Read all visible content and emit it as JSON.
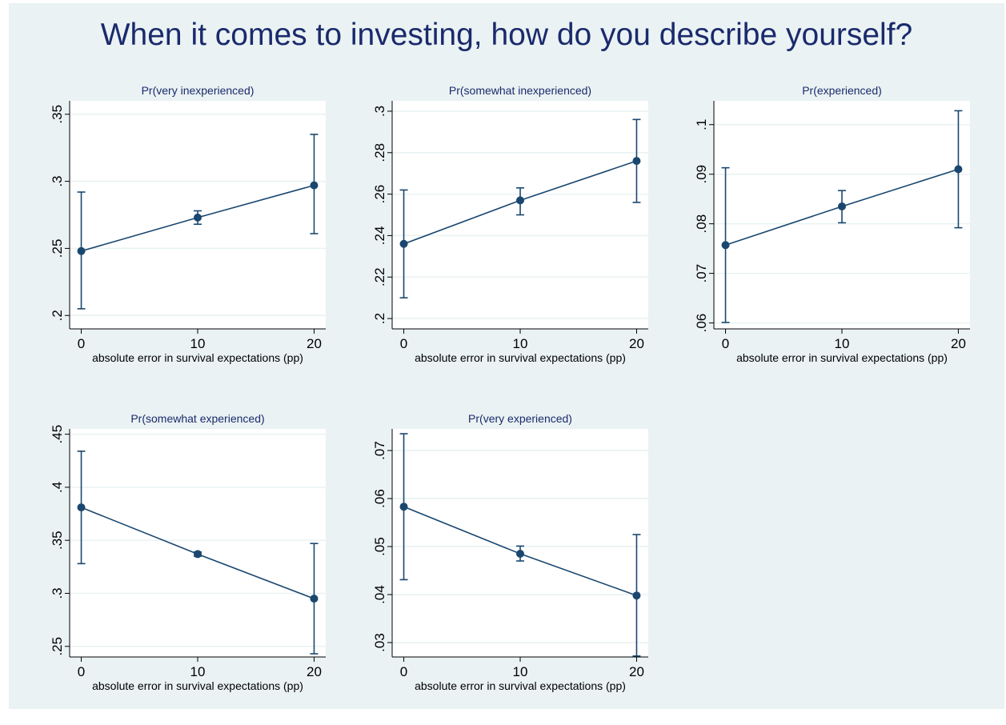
{
  "title": "When it comes to investing, how do you describe yourself?",
  "colors": {
    "background": "#eaf2f3",
    "plot_area": "#ffffff",
    "series": "#1a476f",
    "title": "#1a2a6c",
    "grid": "#eaf2f3"
  },
  "chart_data": [
    {
      "type": "line",
      "title": "Pr(very inexperienced)",
      "xlabel": "absolute error in survival expectations (pp)",
      "ylabel": "",
      "x": [
        0,
        10,
        20
      ],
      "y": [
        0.248,
        0.273,
        0.297
      ],
      "ci_low": [
        0.205,
        0.268,
        0.261
      ],
      "ci_high": [
        0.292,
        0.278,
        0.335
      ],
      "xticks": [
        0,
        10,
        20
      ],
      "xtick_labels": [
        "0",
        "10",
        "20"
      ],
      "yticks": [
        0.2,
        0.25,
        0.3,
        0.35
      ],
      "ytick_labels": [
        ".2",
        ".25",
        ".3",
        ".35"
      ],
      "xlim": [
        -1,
        21
      ],
      "ylim": [
        0.19,
        0.36
      ],
      "grid": true
    },
    {
      "type": "line",
      "title": "Pr(somewhat inexperienced)",
      "xlabel": "absolute error in survival expectations (pp)",
      "ylabel": "",
      "x": [
        0,
        10,
        20
      ],
      "y": [
        0.236,
        0.257,
        0.276
      ],
      "ci_low": [
        0.21,
        0.25,
        0.256
      ],
      "ci_high": [
        0.262,
        0.263,
        0.296
      ],
      "xticks": [
        0,
        10,
        20
      ],
      "xtick_labels": [
        "0",
        "10",
        "20"
      ],
      "yticks": [
        0.2,
        0.22,
        0.24,
        0.26,
        0.28,
        0.3
      ],
      "ytick_labels": [
        ".2",
        ".22",
        ".24",
        ".26",
        ".28",
        ".3"
      ],
      "xlim": [
        -1,
        21
      ],
      "ylim": [
        0.195,
        0.305
      ],
      "grid": true
    },
    {
      "type": "line",
      "title": "Pr(experienced)",
      "xlabel": "absolute error in survival expectations (pp)",
      "ylabel": "",
      "x": [
        0,
        10,
        20
      ],
      "y": [
        0.0757,
        0.0835,
        0.091
      ],
      "ci_low": [
        0.0601,
        0.0802,
        0.0792
      ],
      "ci_high": [
        0.0913,
        0.0867,
        0.1028
      ],
      "xticks": [
        0,
        10,
        20
      ],
      "xtick_labels": [
        "0",
        "10",
        "20"
      ],
      "yticks": [
        0.06,
        0.07,
        0.08,
        0.09,
        0.1
      ],
      "ytick_labels": [
        ".06",
        ".07",
        ".08",
        ".09",
        ".1"
      ],
      "xlim": [
        -1,
        21
      ],
      "ylim": [
        0.0588,
        0.1048
      ],
      "grid": true
    },
    {
      "type": "line",
      "title": "Pr(somewhat experienced)",
      "xlabel": "absolute error in survival expectations (pp)",
      "ylabel": "",
      "x": [
        0,
        10,
        20
      ],
      "y": [
        0.381,
        0.337,
        0.295
      ],
      "ci_low": [
        0.328,
        0.335,
        0.243
      ],
      "ci_high": [
        0.434,
        0.339,
        0.347
      ],
      "xticks": [
        0,
        10,
        20
      ],
      "xtick_labels": [
        "0",
        "10",
        "20"
      ],
      "yticks": [
        0.25,
        0.3,
        0.35,
        0.4,
        0.45
      ],
      "ytick_labels": [
        ".25",
        ".3",
        ".35",
        ".4",
        ".45"
      ],
      "xlim": [
        -1,
        21
      ],
      "ylim": [
        0.24,
        0.455
      ],
      "grid": true
    },
    {
      "type": "line",
      "title": "Pr(very experienced)",
      "xlabel": "absolute error in survival expectations (pp)",
      "ylabel": "",
      "x": [
        0,
        10,
        20
      ],
      "y": [
        0.0583,
        0.0485,
        0.0398
      ],
      "ci_low": [
        0.0431,
        0.047,
        0.0272
      ],
      "ci_high": [
        0.0735,
        0.0501,
        0.0525
      ],
      "xticks": [
        0,
        10,
        20
      ],
      "xtick_labels": [
        "0",
        "10",
        "20"
      ],
      "yticks": [
        0.03,
        0.04,
        0.05,
        0.06,
        0.07
      ],
      "ytick_labels": [
        ".03",
        ".04",
        ".05",
        ".06",
        ".07"
      ],
      "xlim": [
        -1,
        21
      ],
      "ylim": [
        0.027,
        0.0745
      ],
      "grid": true
    }
  ]
}
